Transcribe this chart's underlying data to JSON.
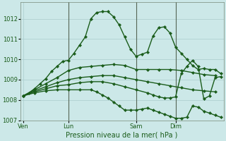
{
  "background_color": "#cce8e8",
  "grid_color": "#aacccc",
  "line_color": "#1a5c1a",
  "title": "Pression niveau de la mer( hPa )",
  "ylim": [
    1007.0,
    1012.8
  ],
  "yticks": [
    1007,
    1008,
    1009,
    1010,
    1011,
    1012
  ],
  "xtick_labels": [
    "Ven",
    "Lun",
    "Sam",
    "Dim"
  ],
  "xtick_positions": [
    0,
    16,
    40,
    54
  ],
  "vlines": [
    16,
    40,
    54
  ],
  "num_points": 72,
  "line1_x": [
    0,
    2,
    4,
    6,
    8,
    10,
    12,
    14,
    16,
    18,
    20,
    22,
    24,
    26,
    28,
    30,
    32,
    34,
    36,
    38,
    40,
    42,
    44,
    46,
    48,
    50,
    52,
    54,
    56,
    58,
    60,
    62,
    64,
    66,
    68,
    70
  ],
  "line1_y": [
    1008.2,
    1008.35,
    1008.55,
    1008.8,
    1009.05,
    1009.4,
    1009.65,
    1009.9,
    1009.95,
    1010.3,
    1010.7,
    1011.1,
    1012.0,
    1012.3,
    1012.35,
    1012.35,
    1012.1,
    1011.7,
    1011.1,
    1010.5,
    1010.15,
    1010.25,
    1010.35,
    1011.15,
    1011.55,
    1011.6,
    1011.3,
    1010.6,
    1010.3,
    1010.0,
    1009.7,
    1009.5,
    1009.55,
    1009.5,
    1009.5,
    1009.3
  ],
  "line2_x": [
    0,
    4,
    8,
    12,
    16,
    20,
    24,
    28,
    32,
    36,
    40,
    44,
    48,
    52,
    56,
    60,
    64,
    68
  ],
  "line2_y": [
    1008.2,
    1008.5,
    1008.8,
    1009.1,
    1009.45,
    1009.6,
    1009.65,
    1009.7,
    1009.75,
    1009.7,
    1009.5,
    1009.5,
    1009.5,
    1009.5,
    1009.45,
    1009.35,
    1009.25,
    1009.2
  ],
  "line3_x": [
    0,
    4,
    8,
    12,
    16,
    20,
    24,
    28,
    32,
    36,
    40,
    44,
    48,
    52,
    56,
    60,
    64,
    68
  ],
  "line3_y": [
    1008.2,
    1008.45,
    1008.65,
    1008.85,
    1009.0,
    1009.1,
    1009.15,
    1009.2,
    1009.2,
    1009.1,
    1009.0,
    1008.9,
    1008.8,
    1008.7,
    1008.6,
    1008.5,
    1008.45,
    1008.4
  ],
  "line4_x": [
    0,
    4,
    8,
    12,
    16,
    20,
    24,
    28,
    32,
    36,
    40,
    44,
    46,
    48,
    50,
    52,
    54,
    56,
    58,
    60,
    62,
    64,
    66,
    68,
    70
  ],
  "line4_y": [
    1008.2,
    1008.4,
    1008.55,
    1008.7,
    1008.75,
    1008.85,
    1008.9,
    1008.9,
    1008.8,
    1008.65,
    1008.5,
    1008.35,
    1008.25,
    1008.15,
    1008.1,
    1008.1,
    1008.15,
    1009.3,
    1009.65,
    1009.95,
    1009.65,
    1008.05,
    1008.2,
    1009.1,
    1009.15
  ],
  "line5_x": [
    0,
    4,
    8,
    12,
    16,
    20,
    24,
    26,
    28,
    30,
    32,
    34,
    36,
    38,
    40,
    42,
    44,
    46,
    48,
    50,
    52,
    54,
    56,
    58,
    60,
    62,
    64,
    66,
    68,
    70
  ],
  "line5_y": [
    1008.2,
    1008.35,
    1008.45,
    1008.5,
    1008.5,
    1008.5,
    1008.5,
    1008.4,
    1008.25,
    1008.1,
    1007.9,
    1007.7,
    1007.5,
    1007.5,
    1007.5,
    1007.55,
    1007.6,
    1007.5,
    1007.4,
    1007.3,
    1007.2,
    1007.1,
    1007.1,
    1007.15,
    1007.7,
    1007.65,
    1007.45,
    1007.35,
    1007.25,
    1007.15
  ]
}
